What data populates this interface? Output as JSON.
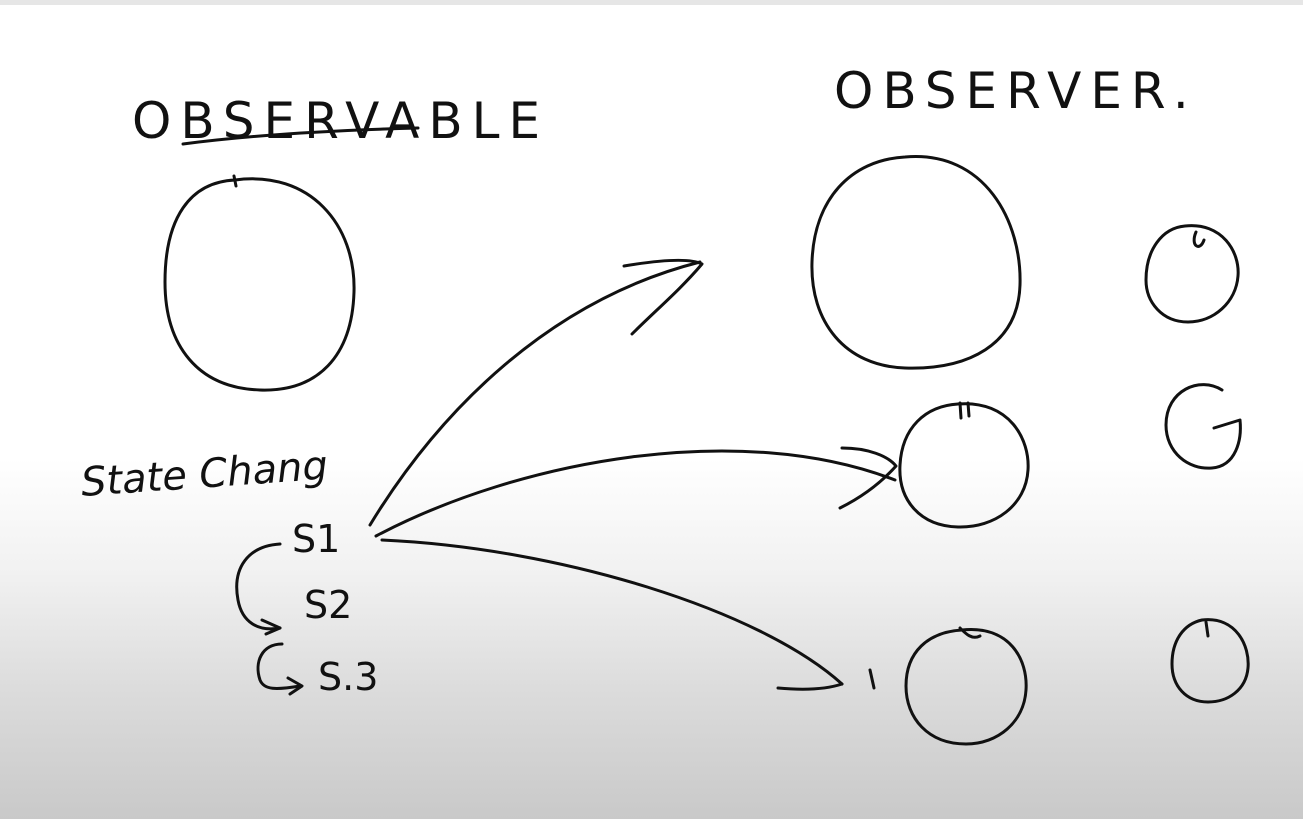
{
  "observable": {
    "title": "OBSERVABLE"
  },
  "observer": {
    "title": "OBSERVER."
  },
  "state_change": {
    "label": "State Chang",
    "states": [
      "S1",
      "S2",
      "S.3"
    ]
  }
}
